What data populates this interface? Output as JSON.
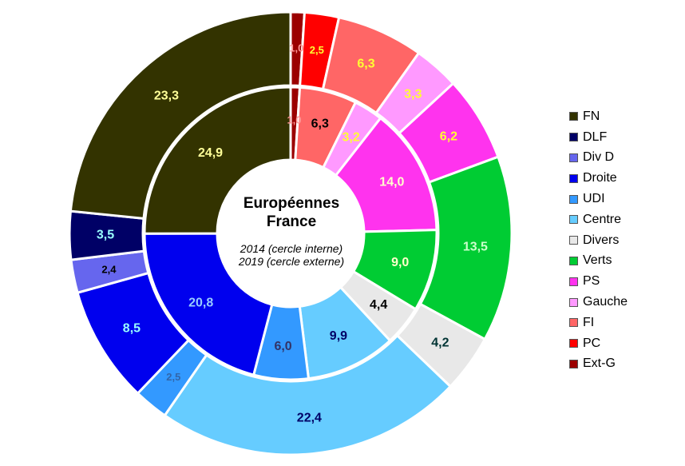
{
  "chart_data": {
    "type": "pie",
    "title": "Européennes France",
    "title_lines": [
      "Européennes",
      "France"
    ],
    "subtitle_lines": [
      "2014 (cercle interne)",
      "2019 (cercle externe)"
    ],
    "legend_position": "right",
    "categories": [
      "Ext-G",
      "PC",
      "FI",
      "Gauche",
      "PS",
      "Verts",
      "Divers",
      "Centre",
      "UDI",
      "Droite",
      "Div D",
      "DLF",
      "FN"
    ],
    "legend_order": [
      "FN",
      "DLF",
      "Div D",
      "Droite",
      "UDI",
      "Centre",
      "Divers",
      "Verts",
      "PS",
      "Gauche",
      "FI",
      "PC",
      "Ext-G"
    ],
    "colors": {
      "Ext-G": "#9b0000",
      "PC": "#ff0000",
      "FI": "#ff6666",
      "Gauche": "#ff99ff",
      "PS": "#ff33ee",
      "Verts": "#00cc33",
      "Divers": "#e8e8e8",
      "Centre": "#66ccff",
      "UDI": "#3399ff",
      "Droite": "#0000ee",
      "Div D": "#6666ee",
      "DLF": "#000066",
      "FN": "#333300"
    },
    "series": [
      {
        "name": "2014",
        "ring": "inner",
        "slices": [
          {
            "category": "Ext-G",
            "value": 1.0,
            "label": "1,0"
          },
          {
            "category": "FI",
            "value": 6.3,
            "label": "6,3"
          },
          {
            "category": "Gauche",
            "value": 3.2,
            "label": "3,2"
          },
          {
            "category": "PS",
            "value": 14.0,
            "label": "14,0"
          },
          {
            "category": "Verts",
            "value": 9.0,
            "label": "9,0"
          },
          {
            "category": "Divers",
            "value": 4.4,
            "label": "4,4"
          },
          {
            "category": "Centre",
            "value": 9.9,
            "label": "9,9"
          },
          {
            "category": "UDI",
            "value": 6.0,
            "label": "6,0"
          },
          {
            "category": "Droite",
            "value": 20.8,
            "label": "20,8"
          },
          {
            "category": "FN",
            "value": 24.9,
            "label": "24,9"
          }
        ]
      },
      {
        "name": "2019",
        "ring": "outer",
        "slices": [
          {
            "category": "Ext-G",
            "value": 1.0,
            "label": "1,0"
          },
          {
            "category": "PC",
            "value": 2.5,
            "label": "2,5"
          },
          {
            "category": "FI",
            "value": 6.3,
            "label": "6,3"
          },
          {
            "category": "Gauche",
            "value": 3.3,
            "label": "3,3"
          },
          {
            "category": "PS",
            "value": 6.2,
            "label": "6,2"
          },
          {
            "category": "Verts",
            "value": 13.5,
            "label": "13,5"
          },
          {
            "category": "Divers",
            "value": 4.2,
            "label": "4,2"
          },
          {
            "category": "Centre",
            "value": 22.4,
            "label": "22,4"
          },
          {
            "category": "UDI",
            "value": 2.5,
            "label": "2,5"
          },
          {
            "category": "Droite",
            "value": 8.5,
            "label": "8,5"
          },
          {
            "category": "Div D",
            "value": 2.4,
            "label": "2,4"
          },
          {
            "category": "DLF",
            "value": 3.5,
            "label": "3,5"
          },
          {
            "category": "FN",
            "value": 23.3,
            "label": "23,3"
          }
        ]
      }
    ]
  }
}
